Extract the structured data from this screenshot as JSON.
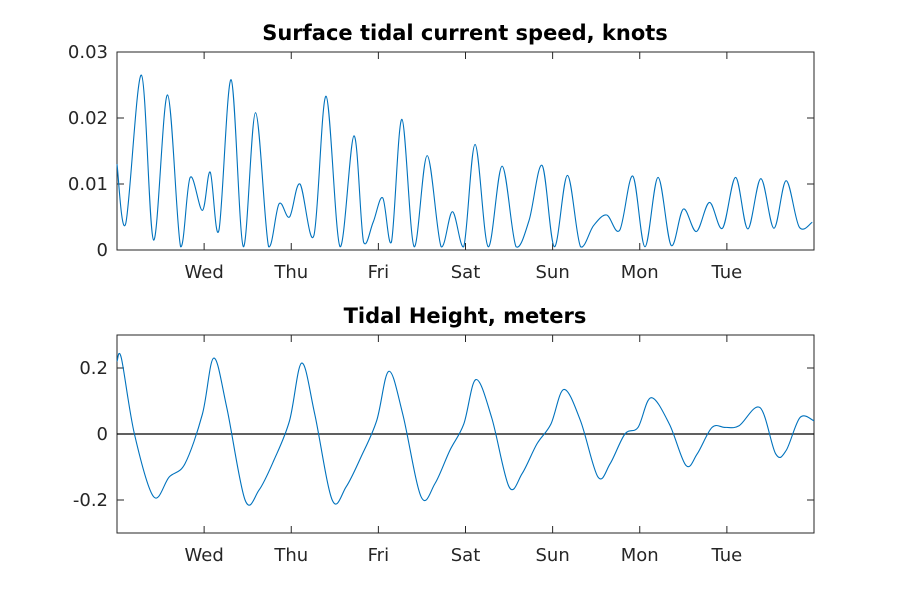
{
  "colors": {
    "series": "#0072BD",
    "zero_line": "#000000",
    "axes": "#262626"
  },
  "chart_data": [
    {
      "type": "line",
      "title": "Surface tidal current speed, knots",
      "xlabel": "",
      "ylabel": "",
      "x_range_days": [
        0,
        8
      ],
      "x_ticks": [
        {
          "label": "Wed",
          "day": 1
        },
        {
          "label": "Thu",
          "day": 2
        },
        {
          "label": "Fri",
          "day": 3
        },
        {
          "label": "Sat",
          "day": 4
        },
        {
          "label": "Sun",
          "day": 5
        },
        {
          "label": "Mon",
          "day": 6
        },
        {
          "label": "Tue",
          "day": 7
        }
      ],
      "ylim": [
        0,
        0.03
      ],
      "y_ticks": [
        {
          "label": "0",
          "value": 0
        },
        {
          "label": "0.01",
          "value": 0.01
        },
        {
          "label": "0.02",
          "value": 0.02
        },
        {
          "label": "0.03",
          "value": 0.03
        }
      ],
      "grid": false,
      "series": [
        {
          "x": [
            0,
            0.1,
            0.28,
            0.42,
            0.58,
            0.73,
            0.84,
            0.98,
            1.07,
            1.17,
            1.31,
            1.45,
            1.59,
            1.74,
            1.86,
            1.98,
            2.1,
            2.26,
            2.4,
            2.56,
            2.72,
            2.83,
            2.94,
            3.05,
            3.15,
            3.27,
            3.41,
            3.56,
            3.72,
            3.85,
            3.98,
            4.11,
            4.26,
            4.42,
            4.58,
            4.73,
            4.88,
            5.02,
            5.17,
            5.32,
            5.47,
            5.62,
            5.77,
            5.92,
            6.06,
            6.21,
            6.36,
            6.5,
            6.65,
            6.8,
            6.95,
            7.1,
            7.24,
            7.39,
            7.54,
            7.68,
            7.83,
            7.98
          ],
          "y": [
            0.013,
            0.004,
            0.0265,
            0.0015,
            0.0235,
            0.0005,
            0.011,
            0.006,
            0.0118,
            0.003,
            0.0258,
            0.0005,
            0.0208,
            0.0005,
            0.007,
            0.005,
            0.01,
            0.0022,
            0.0233,
            0.0005,
            0.0173,
            0.0012,
            0.0042,
            0.0079,
            0.0012,
            0.0198,
            0.0005,
            0.0143,
            0.0005,
            0.0058,
            0.0005,
            0.016,
            0.0005,
            0.0127,
            0.0005,
            0.0045,
            0.0128,
            0.0005,
            0.0113,
            0.0005,
            0.0037,
            0.0053,
            0.003,
            0.0112,
            0.0005,
            0.011,
            0.0007,
            0.0062,
            0.0028,
            0.0072,
            0.0033,
            0.011,
            0.0032,
            0.0108,
            0.0033,
            0.0105,
            0.0035,
            0.0042
          ],
          "annotation": "",
          "values_note": ""
        }
      ],
      "reference_lines": []
    },
    {
      "type": "line",
      "title": "Tidal Height, meters",
      "xlabel": "",
      "ylabel": "",
      "x_range_days": [
        0,
        8
      ],
      "x_ticks": [
        {
          "label": "Wed",
          "day": 1
        },
        {
          "label": "Thu",
          "day": 2
        },
        {
          "label": "Fri",
          "day": 3
        },
        {
          "label": "Sat",
          "day": 4
        },
        {
          "label": "Sun",
          "day": 5
        },
        {
          "label": "Mon",
          "day": 6
        },
        {
          "label": "Tue",
          "day": 7
        }
      ],
      "ylim": [
        -0.3,
        0.3
      ],
      "y_ticks": [
        {
          "label": "-0.2",
          "value": -0.2
        },
        {
          "label": "0",
          "value": 0
        },
        {
          "label": "0.2",
          "value": 0.2
        }
      ],
      "grid": false,
      "series": [
        {
          "x": [
            0,
            0.05,
            0.2,
            0.42,
            0.6,
            0.78,
            0.98,
            1.11,
            1.26,
            1.47,
            1.63,
            1.8,
            1.98,
            2.12,
            2.27,
            2.47,
            2.63,
            2.8,
            2.98,
            3.12,
            3.28,
            3.49,
            3.65,
            3.82,
            3.98,
            4.12,
            4.3,
            4.5,
            4.65,
            4.82,
            4.98,
            5.13,
            5.32,
            5.52,
            5.66,
            5.83,
            5.98,
            6.13,
            6.34,
            6.53,
            6.66,
            6.83,
            6.98,
            7.14,
            7.38,
            7.56,
            7.68,
            7.84,
            8.0
          ],
          "y": [
            0.22,
            0.23,
            0.0,
            -0.19,
            -0.13,
            -0.09,
            0.06,
            0.23,
            0.08,
            -0.2,
            -0.17,
            -0.08,
            0.04,
            0.215,
            0.06,
            -0.2,
            -0.16,
            -0.07,
            0.04,
            0.19,
            0.06,
            -0.19,
            -0.15,
            -0.05,
            0.03,
            0.165,
            0.05,
            -0.16,
            -0.12,
            -0.03,
            0.03,
            0.135,
            0.04,
            -0.13,
            -0.09,
            0.0,
            0.02,
            0.11,
            0.03,
            -0.095,
            -0.06,
            0.02,
            0.02,
            0.025,
            0.08,
            -0.06,
            -0.05,
            0.05,
            0.04
          ],
          "annotation": "",
          "values_note": ""
        }
      ],
      "reference_lines": [
        {
          "axis": "y",
          "value": 0
        }
      ]
    }
  ]
}
